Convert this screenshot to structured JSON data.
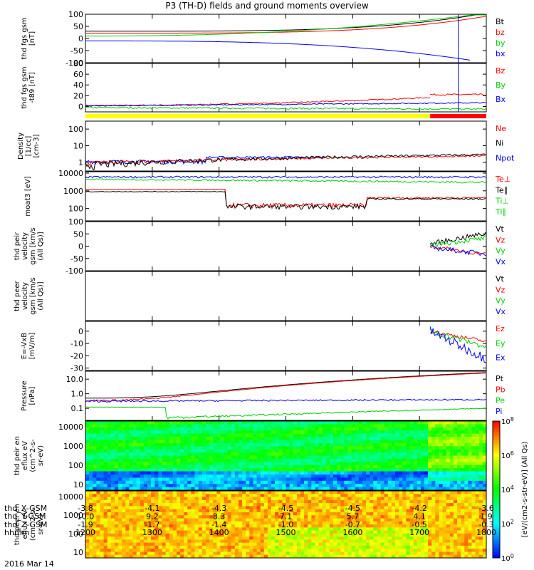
{
  "title": "P3 (TH-D) fields and ground moments overview",
  "date_label": "2016 Mar 14",
  "x_rows": [
    {
      "label": "thd_X-GSM",
      "values": [
        "-3.8",
        "-4.1",
        "-4.3",
        "-4.5",
        "-4.5",
        "-4.2",
        "-3.6"
      ]
    },
    {
      "label": "thd_Y-GSM",
      "values": [
        "10.0",
        "9.2",
        "8.3",
        "7.1",
        "5.7",
        "4.1",
        "1.9"
      ]
    },
    {
      "label": "thd_Z-GSM",
      "values": [
        "-1.9",
        "-1.7",
        "-1.4",
        "-1.0",
        "-0.7",
        "-0.5",
        "-0.3"
      ]
    },
    {
      "label": "hhmm",
      "values": [
        "1200",
        "1300",
        "1400",
        "1500",
        "1600",
        "1700",
        "1800"
      ]
    }
  ],
  "colorbar": {
    "label": "[eV/(cm2-s-str-eV)] (All Qs)",
    "ticks": [
      "10^0",
      "10^2",
      "10^4",
      "10^6",
      "10^8"
    ]
  },
  "colors": {
    "black": "#000000",
    "red": "#ff0000",
    "green": "#00d000",
    "blue": "#0000ff",
    "yellow": "#ffff00"
  },
  "chart_data": [
    {
      "type": "line",
      "ylabel": "thd fgs gsm [nT]",
      "ylim": [
        -100,
        100
      ],
      "ticks": [
        "100",
        "50",
        "0",
        "-50",
        "-100"
      ],
      "legend": [
        {
          "name": "Bt",
          "color": "black"
        },
        {
          "name": "bz",
          "color": "red"
        },
        {
          "name": "by",
          "color": "green"
        },
        {
          "name": "bx",
          "color": "blue"
        }
      ]
    },
    {
      "type": "line",
      "ylabel": "thd fgs gsm -t89 [nT]",
      "ylim": [
        -10,
        80
      ],
      "ticks": [
        "80",
        "60",
        "40",
        "20",
        "0"
      ],
      "legend": [
        {
          "name": "Bz",
          "color": "red"
        },
        {
          "name": "By",
          "color": "green"
        },
        {
          "name": "Bx",
          "color": "blue"
        }
      ]
    },
    {
      "type": "line",
      "ylabel": "Density [1/cc] [cm-3]",
      "ylim": [
        0.3,
        300
      ],
      "log": true,
      "ticks": [
        "100",
        "10",
        "1"
      ],
      "legend": [
        {
          "name": "Ne",
          "color": "red"
        },
        {
          "name": "Ni",
          "color": "black"
        },
        {
          "name": "Npot",
          "color": "blue"
        }
      ]
    },
    {
      "type": "line",
      "ylabel": "moat3 [eV]",
      "ylim": [
        20,
        12000
      ],
      "log": true,
      "ticks": [
        "10000",
        "1000",
        "100"
      ],
      "legend": [
        {
          "name": "Te⊥",
          "color": "red"
        },
        {
          "name": "Te∥",
          "color": "black"
        },
        {
          "name": "Ti⊥",
          "color": "green"
        },
        {
          "name": "Ti∥",
          "color": "green"
        }
      ]
    },
    {
      "type": "line",
      "ylabel": "thd peir velocity gsm [km/s (All Qs)]",
      "ylim": [
        -100,
        100
      ],
      "ticks": [
        "100",
        "50",
        "0",
        "-50",
        "-100"
      ],
      "legend": [
        {
          "name": "Vt",
          "color": "black"
        },
        {
          "name": "Vz",
          "color": "red"
        },
        {
          "name": "Vy",
          "color": "green"
        },
        {
          "name": "Vx",
          "color": "blue"
        }
      ]
    },
    {
      "type": "line",
      "ylabel": "thd peer velocity gsm [km/s (All Qs)]",
      "ylim": [
        -1,
        1
      ],
      "ticks": [],
      "legend": [
        {
          "name": "Vt",
          "color": "black"
        },
        {
          "name": "Vz",
          "color": "red"
        },
        {
          "name": "Vy",
          "color": "green"
        },
        {
          "name": "Vx",
          "color": "blue"
        }
      ]
    },
    {
      "type": "line",
      "ylabel": "E=-VxB [mV/m]",
      "ylim": [
        -32,
        8
      ],
      "ticks": [
        "0",
        "-10",
        "-20",
        "-30"
      ],
      "legend": [
        {
          "name": "Ez",
          "color": "red"
        },
        {
          "name": "Ey",
          "color": "green"
        },
        {
          "name": "Ex",
          "color": "blue"
        }
      ]
    },
    {
      "type": "line",
      "ylabel": "Pressure [nPa]",
      "ylim": [
        0.015,
        35
      ],
      "log": true,
      "ticks": [
        "10.0",
        "1.0",
        "0.1"
      ],
      "legend": [
        {
          "name": "Pt",
          "color": "black"
        },
        {
          "name": "Pb",
          "color": "red"
        },
        {
          "name": "Pe",
          "color": "green"
        },
        {
          "name": "Pi",
          "color": "blue"
        }
      ]
    },
    {
      "type": "heatmap",
      "ylabel": "thd peir en eflux eV (cm^2-s- sr-eV)",
      "ylim": [
        5,
        20000
      ],
      "log": true,
      "ticks": [
        "10000",
        "1000",
        "100",
        "10"
      ]
    },
    {
      "type": "heatmap",
      "ylabel": "thd peer en eflux eV (cm^2-s- sr-eV)",
      "ylim": [
        5,
        20000
      ],
      "log": true,
      "ticks": [
        "10000",
        "1000",
        "100",
        "10"
      ]
    }
  ]
}
